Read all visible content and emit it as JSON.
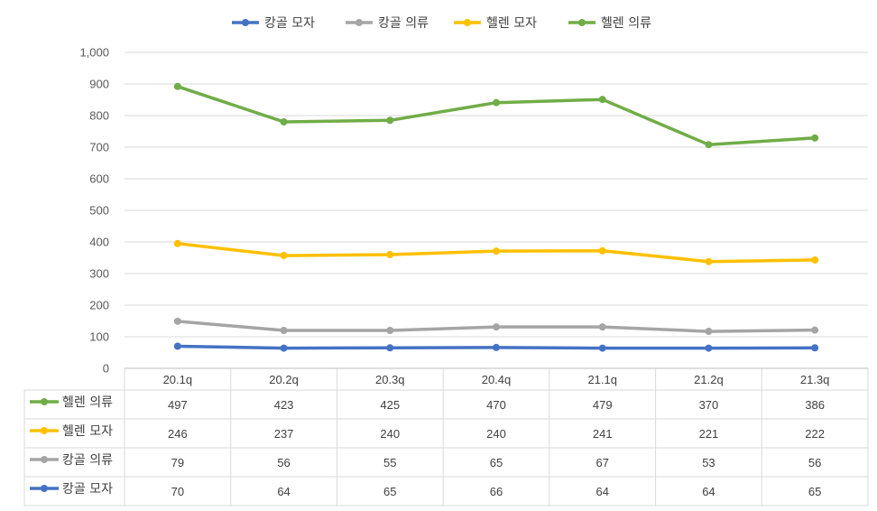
{
  "chart_data": {
    "type": "line",
    "categories": [
      "20.1q",
      "20.2q",
      "20.3q",
      "20.4q",
      "21.1q",
      "21.2q",
      "21.3q"
    ],
    "series": [
      {
        "name": "캉골 모자",
        "color": "#4472C4",
        "values": [
          70,
          64,
          65,
          66,
          64,
          64,
          65
        ]
      },
      {
        "name": "캉골 의류",
        "color": "#A5A5A5",
        "values": [
          79,
          56,
          55,
          65,
          67,
          53,
          56
        ]
      },
      {
        "name": "헬렌 모자",
        "color": "#FFC000",
        "values": [
          246,
          237,
          240,
          240,
          241,
          221,
          222
        ]
      },
      {
        "name": "헬렌 의류",
        "color": "#70AD47",
        "values": [
          497,
          423,
          425,
          470,
          479,
          370,
          386
        ]
      }
    ],
    "stacked": true,
    "ylim": [
      0,
      1000
    ],
    "yticks": [
      "0",
      "100",
      "200",
      "300",
      "400",
      "500",
      "600",
      "700",
      "800",
      "900",
      "1,000"
    ],
    "legend_position": "top",
    "grid": true,
    "data_table": true,
    "table_row_order": [
      "헬렌 의류",
      "헬렌 모자",
      "캉골 의류",
      "캉골 모자"
    ]
  }
}
